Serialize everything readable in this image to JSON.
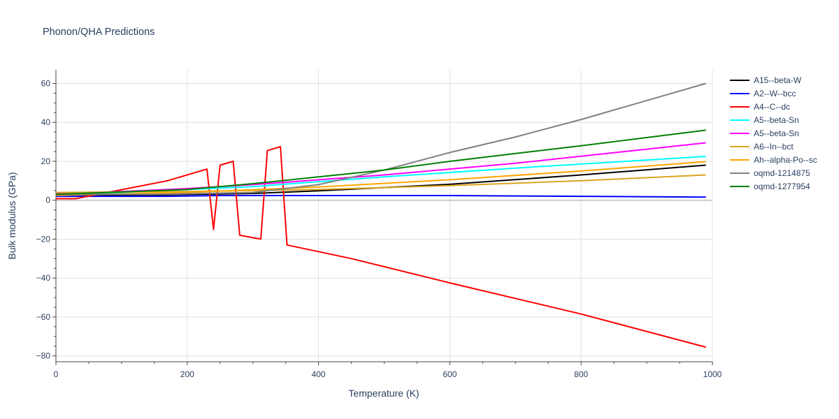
{
  "chart_data": {
    "type": "line",
    "title": "Phonon/QHA Predictions",
    "xlabel": "Temperature (K)",
    "ylabel": "Bulk modulus (GPa)",
    "xlim": [
      0,
      1000
    ],
    "ylim": [
      -83,
      67
    ],
    "x_ticks": [
      0,
      200,
      400,
      600,
      800,
      1000
    ],
    "x_tick_labels": [
      "0",
      "200",
      "400",
      "600",
      "800",
      "1000"
    ],
    "y_ticks": [
      -80,
      -60,
      -40,
      -20,
      0,
      20,
      40,
      60
    ],
    "y_tick_labels": [
      "−80",
      "−60",
      "−40",
      "−20",
      "0",
      "20",
      "40",
      "60"
    ],
    "grid": true,
    "legend_position": "right",
    "series": [
      {
        "name": "A15--beta-W",
        "color": "#000000",
        "points": [
          [
            0,
            2.5
          ],
          [
            150,
            2.7
          ],
          [
            300,
            3.5
          ],
          [
            400,
            4.8
          ],
          [
            600,
            8.2
          ],
          [
            800,
            13.0
          ],
          [
            990,
            18.0
          ]
        ]
      },
      {
        "name": "A2--W--bcc",
        "color": "#0000ff",
        "points": [
          [
            0,
            2.0
          ],
          [
            170,
            2.0
          ],
          [
            250,
            2.4
          ],
          [
            580,
            2.4
          ],
          [
            990,
            1.6
          ]
        ]
      },
      {
        "name": "A4--C--dc",
        "color": "#ff0000",
        "points": [
          [
            0,
            0.8
          ],
          [
            30,
            0.8
          ],
          [
            170,
            10.0
          ],
          [
            230,
            16.0
          ],
          [
            240,
            -15.0
          ],
          [
            250,
            18.0
          ],
          [
            270,
            20.0
          ],
          [
            280,
            -18.0
          ],
          [
            312,
            -20.0
          ],
          [
            322,
            25.5
          ],
          [
            342,
            27.5
          ],
          [
            352,
            -23.0
          ],
          [
            450,
            -30.0
          ],
          [
            600,
            -42.5
          ],
          [
            800,
            -58.5
          ],
          [
            990,
            -75.5
          ]
        ]
      },
      {
        "name": "A5--beta-Sn",
        "color": "#00ffff",
        "points": [
          [
            0,
            3.0
          ],
          [
            100,
            4.0
          ],
          [
            300,
            7.0
          ],
          [
            500,
            12.0
          ],
          [
            700,
            16.5
          ],
          [
            990,
            22.5
          ]
        ]
      },
      {
        "name": "A5--beta-Sn",
        "color": "#ff00ff",
        "points": [
          [
            0,
            3.5
          ],
          [
            100,
            4.5
          ],
          [
            200,
            6.0
          ],
          [
            300,
            8.0
          ],
          [
            500,
            13.0
          ],
          [
            700,
            19.0
          ],
          [
            990,
            29.5
          ]
        ]
      },
      {
        "name": "A6--In--bct",
        "color": "#daa520",
        "points": [
          [
            0,
            4.0
          ],
          [
            200,
            4.5
          ],
          [
            400,
            5.5
          ],
          [
            600,
            7.5
          ],
          [
            800,
            10.0
          ],
          [
            990,
            13.0
          ]
        ]
      },
      {
        "name": "Ah--alpha-Po--sc",
        "color": "#ffa500",
        "points": [
          [
            0,
            2.5
          ],
          [
            200,
            4.0
          ],
          [
            400,
            6.8
          ],
          [
            600,
            10.5
          ],
          [
            800,
            15.0
          ],
          [
            990,
            19.8
          ]
        ]
      },
      {
        "name": "oqmd-1214875",
        "color": "#808080",
        "points": [
          [
            0,
            3.0
          ],
          [
            150,
            3.0
          ],
          [
            300,
            4.0
          ],
          [
            400,
            8.0
          ],
          [
            500,
            15.5
          ],
          [
            600,
            24.5
          ],
          [
            700,
            32.5
          ],
          [
            800,
            41.5
          ],
          [
            990,
            60.0
          ]
        ]
      },
      {
        "name": "oqmd-1277954",
        "color": "#008000",
        "points": [
          [
            0,
            3.0
          ],
          [
            200,
            5.5
          ],
          [
            300,
            8.5
          ],
          [
            400,
            12.0
          ],
          [
            500,
            15.5
          ],
          [
            600,
            20.0
          ],
          [
            800,
            28.0
          ],
          [
            990,
            36.0
          ]
        ]
      }
    ]
  }
}
